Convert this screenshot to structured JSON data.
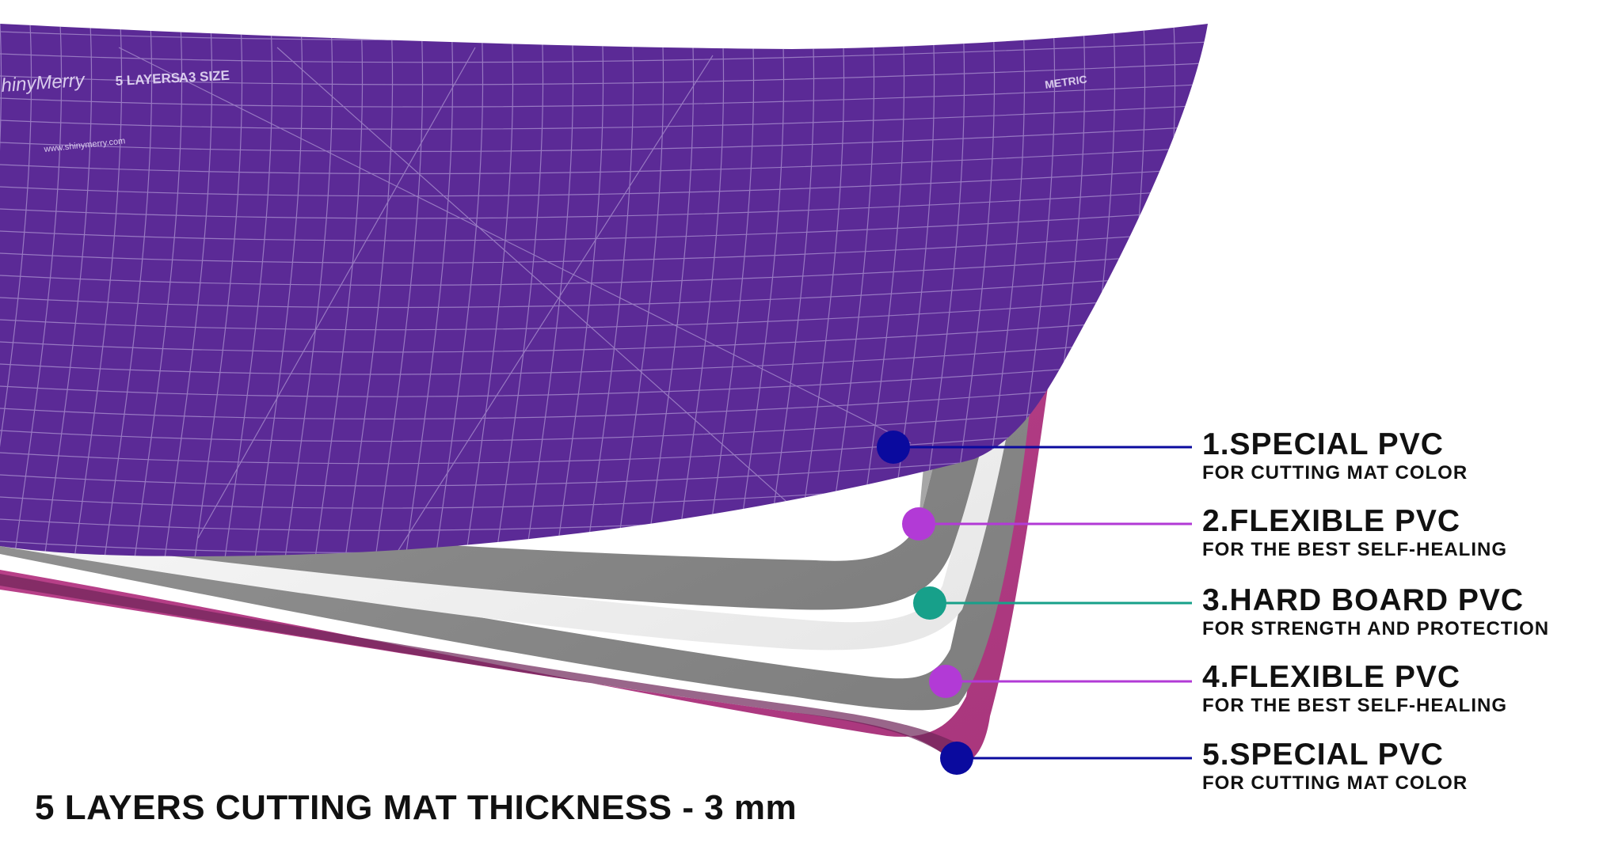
{
  "caption": "5 LAYERS CUTTING MAT THICKNESS - 3 mm",
  "layers": [
    {
      "title": "1.SPECIAL PVC",
      "subtitle": "FOR CUTTING MAT COLOR",
      "dot_color": "#0a0a9e"
    },
    {
      "title": "2.FLEXIBLE PVC",
      "subtitle": "FOR THE BEST SELF-HEALING",
      "dot_color": "#b23ad6"
    },
    {
      "title": "3.HARD BOARD PVC",
      "subtitle": "FOR STRENGTH AND PROTECTION",
      "dot_color": "#17a08a"
    },
    {
      "title": "4.FLEXIBLE PVC",
      "subtitle": "FOR THE BEST SELF-HEALING",
      "dot_color": "#b23ad6"
    },
    {
      "title": "5.SPECIAL PVC",
      "subtitle": "FOR CUTTING MAT COLOR",
      "dot_color": "#0a0a9e"
    }
  ],
  "mat": {
    "brand": "hinyMerry",
    "layers_text": "5 LAYERS",
    "size_text": "A3 SIZE",
    "metric_text": "METRIC",
    "website": "www.shinymerry.com",
    "top_color": "#5b2a96",
    "bottom_color": "#b23f8c",
    "gray_color": "#8e8e8e",
    "white_color": "#f4f4f4"
  }
}
